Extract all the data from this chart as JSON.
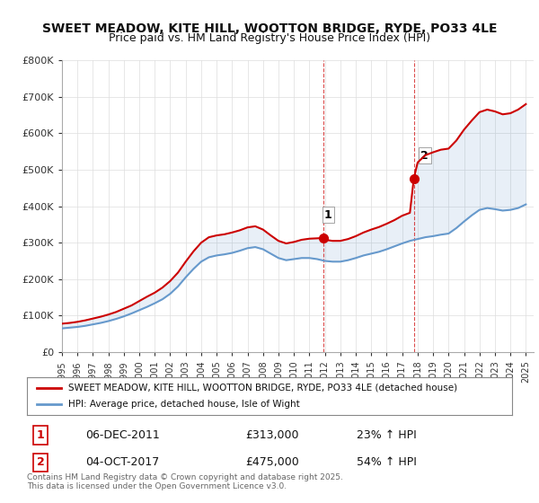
{
  "title1": "SWEET MEADOW, KITE HILL, WOOTTON BRIDGE, RYDE, PO33 4LE",
  "title2": "Price paid vs. HM Land Registry's House Price Index (HPI)",
  "ylabel_ticks": [
    "£0",
    "£100K",
    "£200K",
    "£300K",
    "£400K",
    "£500K",
    "£600K",
    "£700K",
    "£800K"
  ],
  "ylim": [
    0,
    800000
  ],
  "xlim_start": 1995.0,
  "xlim_end": 2025.5,
  "legend_line1": "SWEET MEADOW, KITE HILL, WOOTTON BRIDGE, RYDE, PO33 4LE (detached house)",
  "legend_line2": "HPI: Average price, detached house, Isle of Wight",
  "sale1_label": "1",
  "sale1_date": "06-DEC-2011",
  "sale1_price": "£313,000",
  "sale1_hpi": "23% ↑ HPI",
  "sale2_label": "2",
  "sale2_date": "04-OCT-2017",
  "sale2_price": "£475,000",
  "sale2_hpi": "54% ↑ HPI",
  "footer": "Contains HM Land Registry data © Crown copyright and database right 2025.\nThis data is licensed under the Open Government Licence v3.0.",
  "sale1_x": 2011.92,
  "sale1_y": 313000,
  "sale2_x": 2017.75,
  "sale2_y": 475000,
  "hpi_line_color": "#6699cc",
  "price_line_color": "#cc0000",
  "vline_color": "#cc0000",
  "vline_style": "--",
  "background_color": "#ffffff",
  "grid_color": "#dddddd"
}
